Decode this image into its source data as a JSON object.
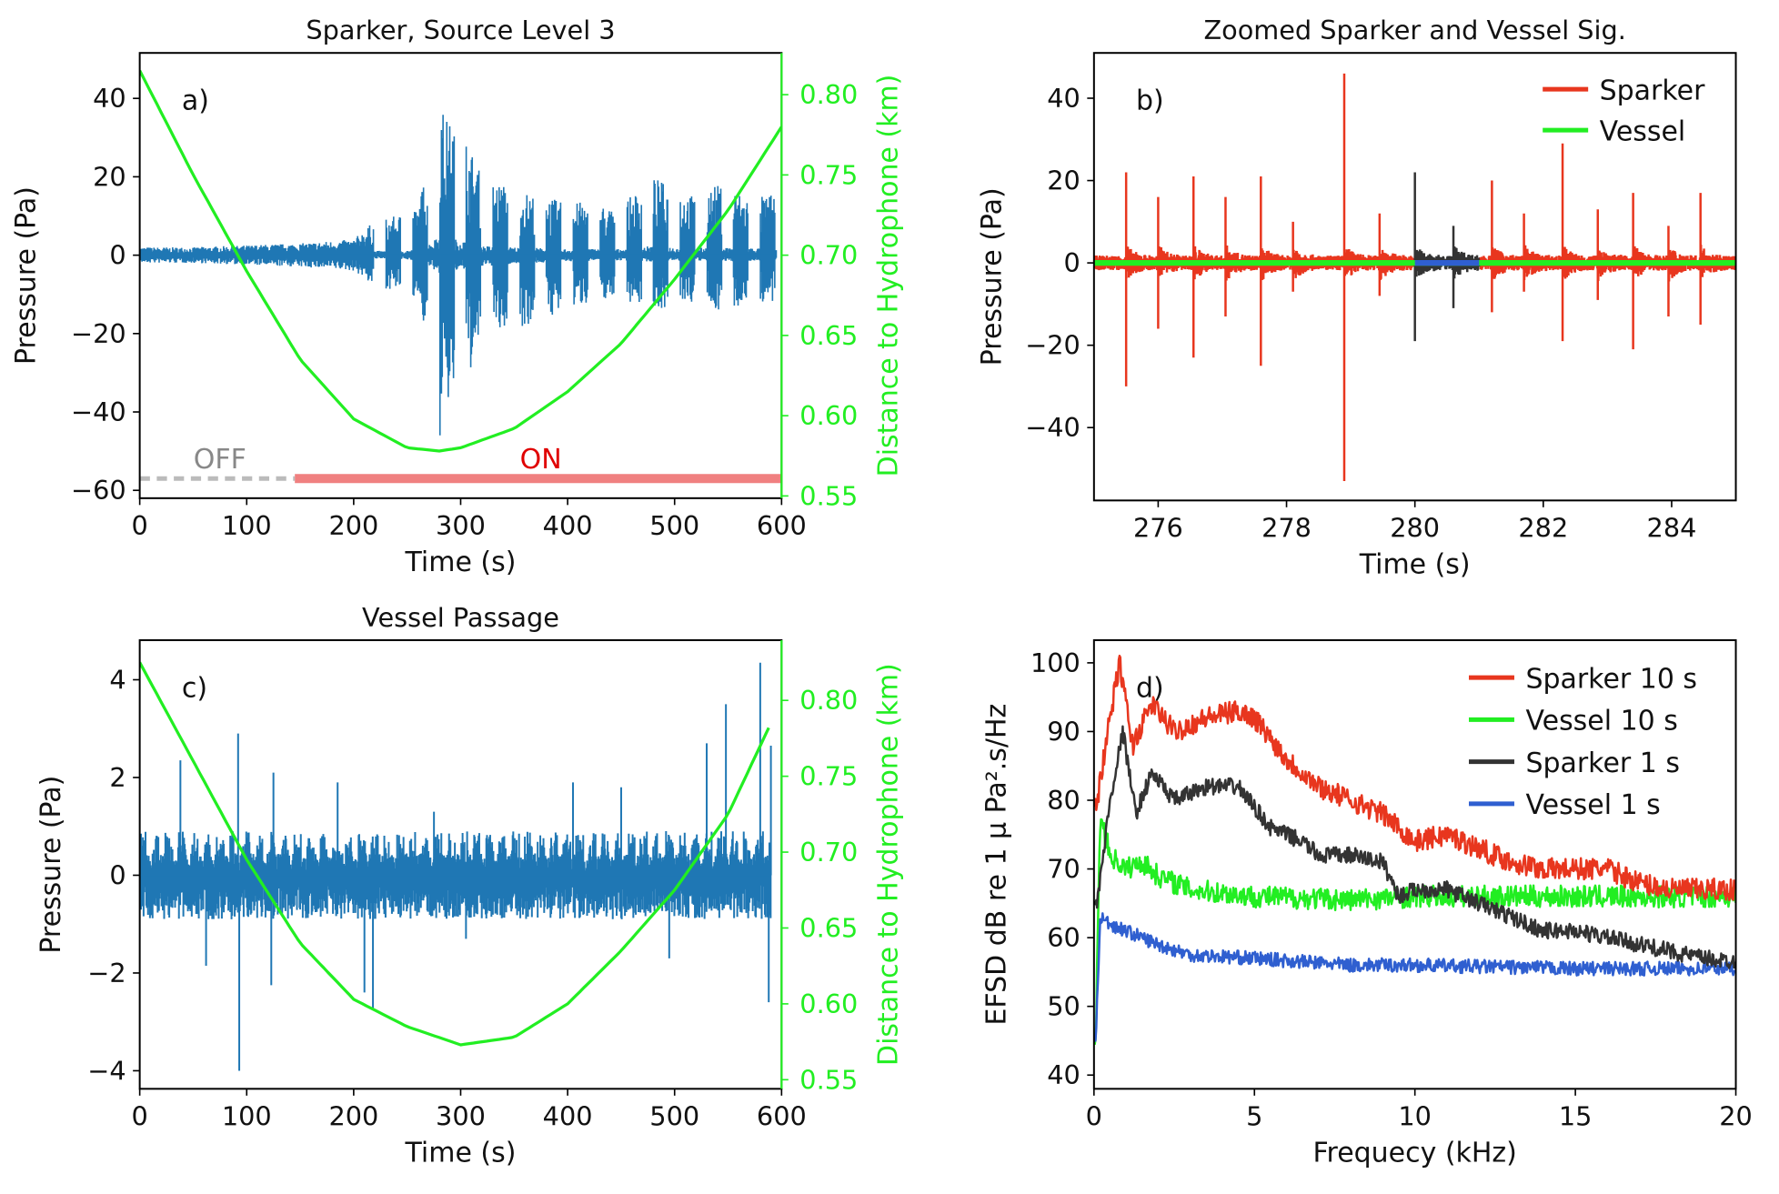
{
  "colors": {
    "signal": "#1f77b4",
    "distance": "#22ee22",
    "sparker": "#e8361e",
    "vessel": "#22ee22",
    "sparker1": "#333333",
    "vessel1": "#2f5fd0",
    "on": "#f08080",
    "off": "#bbbbbb",
    "on_text": "#e00000",
    "off_text": "#888888"
  },
  "chart_data": [
    {
      "id": "a",
      "type": "line",
      "title": "Sparker, Source Level 3",
      "panel_label": "a)",
      "xlabel": "Time (s)",
      "ylabel": "Pressure (Pa)",
      "y2label": "Distance to Hydrophone (km)",
      "xlim": [
        0,
        600
      ],
      "ylim": [
        -62,
        51.6
      ],
      "y2lim": [
        0.5486,
        0.826
      ],
      "xticks": [
        0,
        100,
        200,
        300,
        400,
        500,
        600
      ],
      "yticks": [
        -60,
        -40,
        -20,
        0,
        20,
        40
      ],
      "y2ticks": [
        "0.55",
        "0.60",
        "0.65",
        "0.70",
        "0.75",
        "0.80"
      ],
      "distance": {
        "t": [
          0,
          50,
          100,
          150,
          200,
          250,
          280,
          300,
          350,
          400,
          450,
          500,
          550,
          600
        ],
        "km": [
          0.815,
          0.75,
          0.69,
          0.635,
          0.598,
          0.58,
          0.578,
          0.58,
          0.592,
          0.615,
          0.645,
          0.685,
          0.728,
          0.78
        ]
      },
      "pressure_envelope": {
        "t": [
          0,
          50,
          100,
          150,
          200,
          220,
          240,
          260,
          275,
          278,
          285,
          300,
          320,
          340,
          360,
          380,
          400,
          420,
          440,
          460,
          480,
          500,
          520,
          540,
          560,
          580,
          595
        ],
        "max": [
          2,
          2,
          2.5,
          3,
          4,
          9,
          10,
          12,
          30,
          46,
          35,
          33,
          20,
          18,
          16,
          15,
          13,
          14,
          12,
          15,
          20,
          17,
          15,
          18,
          16,
          15,
          16
        ],
        "min": [
          -2,
          -2,
          -2.5,
          -3,
          -4,
          -8,
          -9,
          -11,
          -30,
          -53,
          -40,
          -33,
          -25,
          -20,
          -18,
          -16,
          -14,
          -12,
          -11,
          -12,
          -14,
          -13,
          -12,
          -14,
          -13,
          -12,
          -13
        ]
      },
      "status": {
        "off": {
          "label": "OFF",
          "t": [
            0,
            145
          ],
          "level": -57
        },
        "on": {
          "label": "ON",
          "t": [
            145,
            600
          ],
          "level": -57
        }
      }
    },
    {
      "id": "b",
      "type": "line",
      "title": "Zoomed Sparker and Vessel Sig.",
      "panel_label": "b)",
      "xlabel": "Time (s)",
      "ylabel": "Pressure (Pa)",
      "xlim": [
        275,
        285
      ],
      "ylim": [
        -57.7,
        51
      ],
      "xticks": [
        276,
        278,
        280,
        282,
        284
      ],
      "yticks": [
        -40,
        -20,
        0,
        20,
        40
      ],
      "legend": {
        "placement": "top-right",
        "entries": [
          "Sparker",
          "Vessel"
        ]
      },
      "sparker_spikes": {
        "t": [
          275.5,
          276.0,
          276.55,
          277.05,
          277.6,
          278.1,
          278.9,
          279.45,
          280.0,
          280.6,
          281.2,
          281.7,
          282.3,
          282.85,
          283.4,
          283.95,
          284.45
        ],
        "max": [
          22,
          16,
          21,
          16,
          21,
          10,
          46,
          12,
          22,
          9,
          20,
          12,
          29,
          13,
          17,
          9,
          17
        ],
        "min": [
          -30,
          -16,
          -23,
          -13,
          -25,
          -7,
          -53,
          -8,
          -19,
          -11,
          -12,
          -7,
          -19,
          -9,
          -21,
          -13,
          -15
        ]
      },
      "highlight_window": [
        280,
        281
      ]
    },
    {
      "id": "c",
      "type": "line",
      "title": "Vessel Passage",
      "panel_label": "c)",
      "xlabel": "Time (s)",
      "ylabel": "Pressure (Pa)",
      "y2label": "Distance to Hydrophone (km)",
      "xlim": [
        0,
        600
      ],
      "ylim": [
        -4.37,
        4.81
      ],
      "y2lim": [
        0.544,
        0.8397
      ],
      "xticks": [
        0,
        100,
        200,
        300,
        400,
        500,
        600
      ],
      "yticks": [
        -4,
        -2,
        0,
        2,
        4
      ],
      "y2ticks": [
        "0.55",
        "0.60",
        "0.65",
        "0.70",
        "0.75",
        "0.80"
      ],
      "distance": {
        "t": [
          0,
          50,
          100,
          150,
          200,
          250,
          300,
          350,
          400,
          450,
          500,
          550,
          590
        ],
        "km": [
          0.825,
          0.76,
          0.695,
          0.64,
          0.603,
          0.585,
          0.573,
          0.578,
          0.6,
          0.635,
          0.675,
          0.725,
          0.785
        ]
      },
      "pressure_spikes": {
        "t": [
          38,
          62,
          92,
          93,
          123,
          125,
          185,
          210,
          218,
          275,
          305,
          405,
          450,
          495,
          530,
          548,
          580,
          588,
          590
        ],
        "p": [
          2.35,
          -1.85,
          2.9,
          -4,
          -2.25,
          2.1,
          1.9,
          -2.4,
          -2.75,
          1.3,
          -1.3,
          1.9,
          1.8,
          -1.7,
          2.7,
          3.5,
          4.35,
          -2.6,
          2.65
        ]
      },
      "baseline_amplitude": 0.9
    },
    {
      "id": "d",
      "type": "line",
      "panel_label": "d)",
      "xlabel": "Frequecy (kHz)",
      "ylabel": "EFSD dB re 1 μ Pa².s/Hz",
      "xlim": [
        0,
        20
      ],
      "ylim": [
        38,
        103.3
      ],
      "xticks": [
        0,
        5,
        10,
        15,
        20
      ],
      "yticks": [
        40,
        50,
        60,
        70,
        80,
        90,
        100
      ],
      "legend": {
        "placement": "top-right",
        "entries": [
          "Sparker 10 s",
          "Vessel 10 s",
          "Sparker 1 s",
          "Vessel 1 s"
        ]
      },
      "series": [
        {
          "name": "Sparker 10 s",
          "x": [
            0.1,
            0.5,
            0.8,
            1.2,
            1.8,
            2.5,
            3.5,
            4.5,
            5,
            6,
            7,
            8,
            9,
            10,
            11,
            12,
            13,
            14,
            15,
            16,
            17,
            18,
            19,
            20
          ],
          "y": [
            80,
            92,
            100,
            88,
            94,
            90,
            92,
            93,
            92,
            86,
            82,
            80,
            78,
            74,
            75,
            73,
            71,
            70,
            70,
            70,
            68,
            67,
            67,
            67
          ]
        },
        {
          "name": "Vessel 10 s",
          "x": [
            0.05,
            0.2,
            0.5,
            1,
            1.5,
            2,
            3,
            5,
            8,
            10,
            15,
            20
          ],
          "y": [
            45,
            78,
            72,
            70,
            71,
            69,
            67,
            66,
            65.5,
            66,
            66,
            66
          ]
        },
        {
          "name": "Sparker 1 s",
          "x": [
            0.1,
            0.5,
            0.9,
            1.3,
            1.8,
            2.5,
            3.5,
            4.5,
            5.5,
            6.5,
            7,
            8,
            9,
            9.5,
            10,
            11,
            12,
            13,
            14,
            15,
            16,
            17,
            18,
            19,
            20
          ],
          "y": [
            65,
            80,
            90,
            78,
            84,
            80,
            82,
            82,
            76,
            74,
            72,
            72,
            71,
            66,
            67,
            67,
            65,
            63,
            61,
            61,
            60,
            59,
            58,
            57,
            56.5
          ]
        },
        {
          "name": "Vessel 1 s",
          "x": [
            0.05,
            0.2,
            0.5,
            1,
            2,
            3,
            5,
            8,
            10,
            15,
            20
          ],
          "y": [
            45,
            63,
            62,
            61,
            59,
            57.5,
            57,
            56,
            56,
            55.5,
            55.5
          ]
        }
      ]
    }
  ]
}
